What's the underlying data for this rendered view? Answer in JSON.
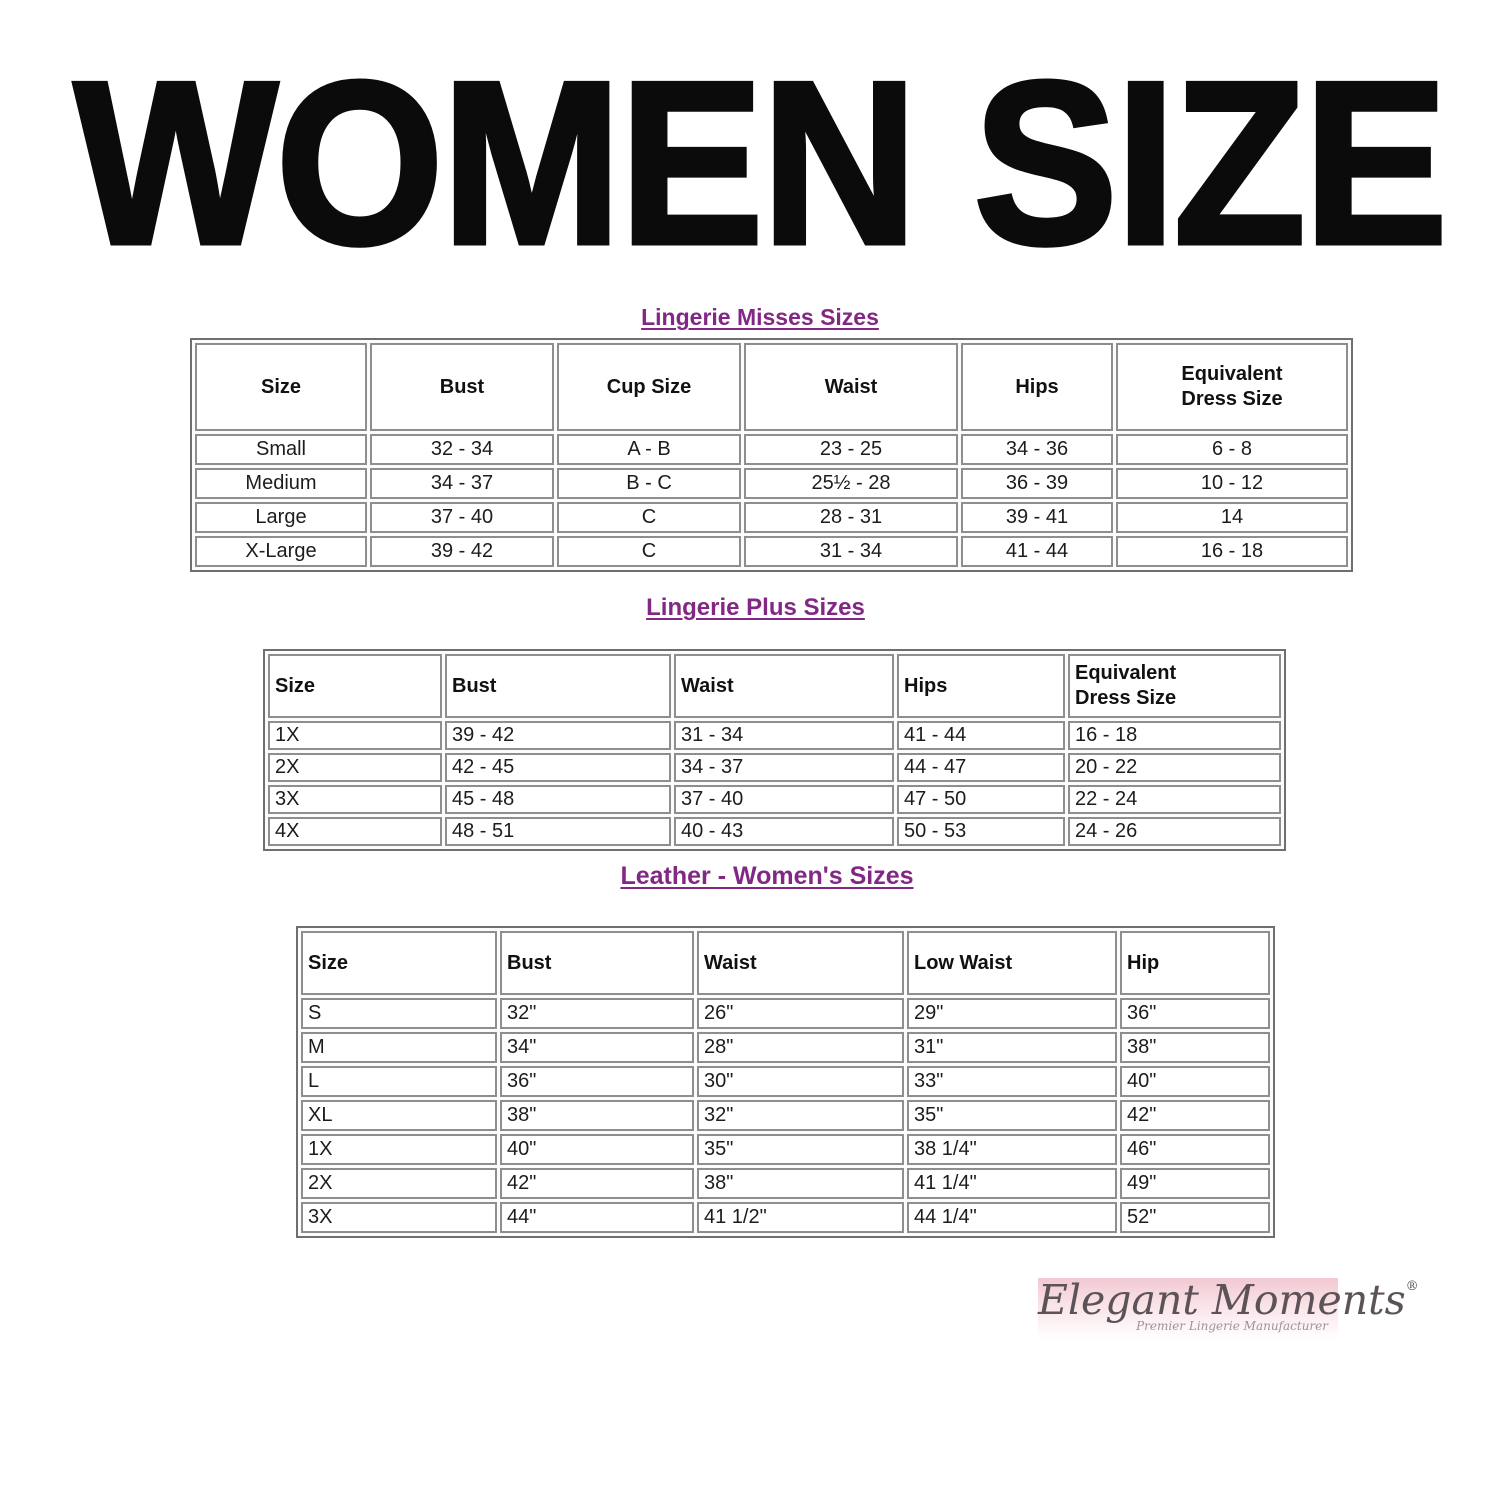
{
  "page": {
    "title": "WOMEN SIZE"
  },
  "tables": [
    {
      "heading": "Lingerie Misses Sizes",
      "columns": [
        "Size",
        "Bust",
        "Cup Size",
        "Waist",
        "Hips",
        "Equivalent\nDress Size"
      ],
      "rows": [
        [
          "Small",
          "32 - 34",
          "A - B",
          "23 - 25",
          "34 - 36",
          "6 - 8"
        ],
        [
          "Medium",
          "34 - 37",
          "B - C",
          "25½ - 28",
          "36 - 39",
          "10 - 12"
        ],
        [
          "Large",
          "37 - 40",
          "C",
          "28 - 31",
          "39 - 41",
          "14"
        ],
        [
          "X-Large",
          "39 - 42",
          "C",
          "31 - 34",
          "41 - 44",
          "16 - 18"
        ]
      ]
    },
    {
      "heading": "Lingerie Plus Sizes",
      "columns": [
        "Size",
        "Bust",
        "Waist",
        "Hips",
        "Equivalent\nDress Size"
      ],
      "rows": [
        [
          "1X",
          "39 - 42",
          "31 - 34",
          "41 - 44",
          "16 - 18"
        ],
        [
          "2X",
          "42 - 45",
          "34 - 37",
          "44 - 47",
          "20 - 22"
        ],
        [
          "3X",
          "45 - 48",
          "37 - 40",
          "47 - 50",
          "22 - 24"
        ],
        [
          "4X",
          "48 - 51",
          "40 - 43",
          "50 - 53",
          "24 - 26"
        ]
      ]
    },
    {
      "heading": "Leather - Women's Sizes",
      "columns": [
        "Size",
        "Bust",
        "Waist",
        "Low Waist",
        "Hip"
      ],
      "rows": [
        [
          "S",
          "32\"",
          "26\"",
          "29\"",
          "36\""
        ],
        [
          "M",
          "34\"",
          "28\"",
          "31\"",
          "38\""
        ],
        [
          "L",
          "36\"",
          "30\"",
          "33\"",
          "40\""
        ],
        [
          "XL",
          "38\"",
          "32\"",
          "35\"",
          "42\""
        ],
        [
          "1X",
          "40\"",
          "35\"",
          "38 1/4\"",
          "46\""
        ],
        [
          "2X",
          "42\"",
          "38\"",
          "41 1/4\"",
          "49\""
        ],
        [
          "3X",
          "44\"",
          "41 1/2\"",
          "44 1/4\"",
          "52\""
        ]
      ]
    }
  ],
  "logo": {
    "name": "Elegant Moments",
    "reg": "®",
    "tagline": "Premier Lingerie Manufacturer"
  },
  "colors": {
    "heading_purple": "#822884",
    "logo_pink": "#f2c8d2",
    "logo_text": "#5c5358",
    "logo_tagline": "#a0929b"
  }
}
